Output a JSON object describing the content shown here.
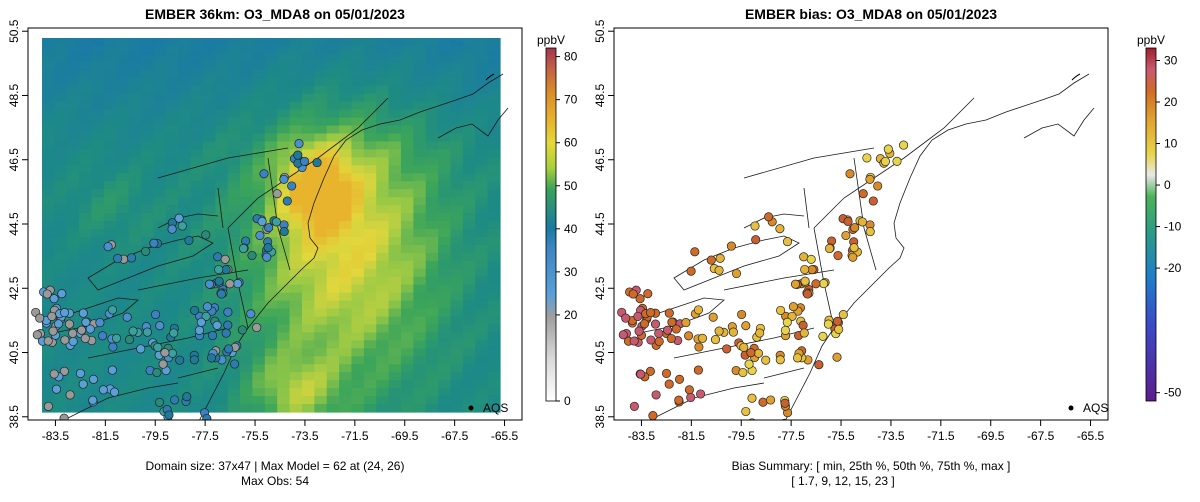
{
  "chart_data": [
    {
      "type": "map",
      "title": "EMBER 36km: O3_MDA8 on 05/01/2023",
      "lon_ticks": [
        "-83.5",
        "-81.5",
        "-79.5",
        "-77.5",
        "-75.5",
        "-73.5",
        "-71.5",
        "-69.5",
        "-67.5",
        "-65.5"
      ],
      "lat_ticks": [
        "38.5",
        "40.5",
        "42.5",
        "44.5",
        "46.5",
        "48.5",
        "50.5"
      ],
      "xlim": [
        -84.6,
        -64.8
      ],
      "ylim": [
        38.4,
        50.6
      ],
      "legend": "AQS",
      "colorbar": {
        "label": "ppbV",
        "ticks": [
          "0",
          "20",
          "30",
          "40",
          "50",
          "60",
          "70",
          "80"
        ],
        "range": [
          0,
          82
        ]
      },
      "footer_line1": "Domain size: 37x47 | Max Model = 62 at (24, 26)",
      "footer_line2": "Max Obs: 54"
    },
    {
      "type": "map",
      "title": "EMBER bias: O3_MDA8 on 05/01/2023",
      "lon_ticks": [
        "-83.5",
        "-81.5",
        "-79.5",
        "-77.5",
        "-75.5",
        "-73.5",
        "-71.5",
        "-69.5",
        "-67.5",
        "-65.5"
      ],
      "lat_ticks": [
        "38.5",
        "40.5",
        "42.5",
        "44.5",
        "46.5",
        "48.5",
        "50.5"
      ],
      "xlim": [
        -84.6,
        -64.8
      ],
      "ylim": [
        38.4,
        50.6
      ],
      "legend": "AQS",
      "colorbar": {
        "label": "ppbV",
        "ticks": [
          "-50",
          "-20",
          "-10",
          "0",
          "10",
          "20",
          "30"
        ],
        "range": [
          -52,
          33
        ]
      },
      "footer_line1": "Bias Summary: [ min, 25th %, 50th %, 75th %, max ]",
      "footer_line2": "[ 1.7,   9,   12,   15,   23 ]",
      "bias_summary": {
        "min": 1.7,
        "p25": 9,
        "p50": 12,
        "p75": 15,
        "max": 23
      }
    }
  ],
  "colors": {
    "frame": "#000000",
    "background": "#ffffff",
    "land_line": "#1a1a1a"
  }
}
